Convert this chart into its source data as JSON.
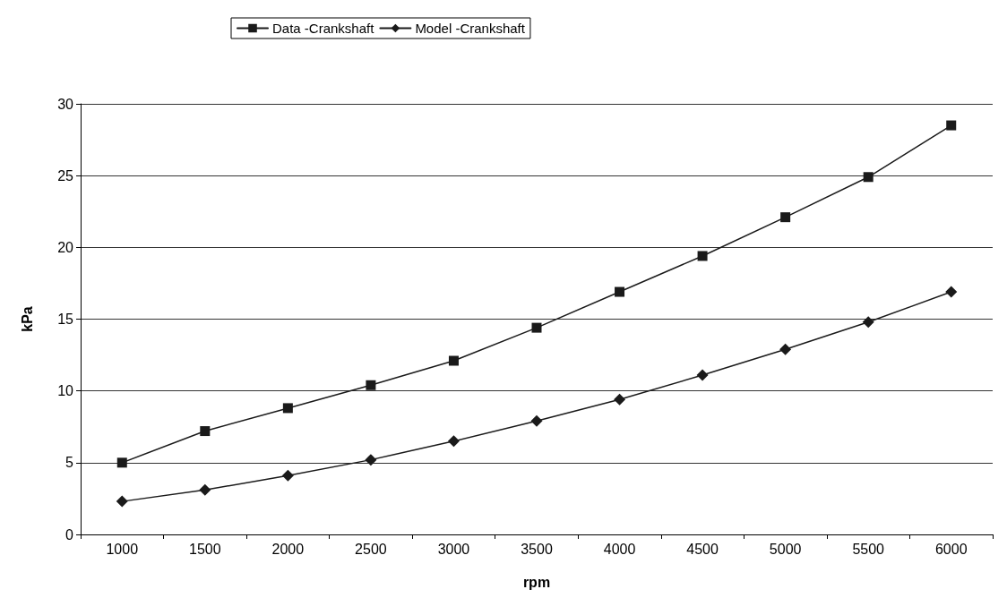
{
  "chart_data": {
    "type": "line",
    "xlabel": "rpm",
    "ylabel": "kPa",
    "categories": [
      "1000",
      "1500",
      "2000",
      "2500",
      "3000",
      "3500",
      "4000",
      "4500",
      "5000",
      "5500",
      "6000"
    ],
    "series": [
      {
        "name": "Data -Crankshaft",
        "color": "#1a1a1a",
        "marker": "square",
        "values": [
          5.0,
          7.2,
          8.8,
          10.4,
          12.1,
          14.4,
          16.9,
          19.4,
          22.1,
          24.9,
          28.5
        ]
      },
      {
        "name": "Model -Crankshaft",
        "color": "#1a1a1a",
        "marker": "diamond",
        "values": [
          2.3,
          3.1,
          4.1,
          5.2,
          6.5,
          7.9,
          9.4,
          11.1,
          12.9,
          14.8,
          16.9
        ]
      }
    ],
    "ylim": [
      0,
      30
    ],
    "yticks": [
      0,
      5,
      10,
      15,
      20,
      25,
      30
    ],
    "grid": "y",
    "legend": "top",
    "line_style": "solid"
  }
}
